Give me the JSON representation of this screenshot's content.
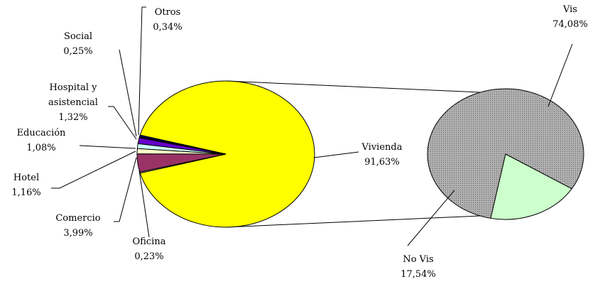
{
  "chart_data": {
    "type": "pie_of_pie",
    "categories": [
      "Vivienda",
      "Otros",
      "Social",
      "Hospital y asistencial",
      "Educación",
      "Hotel",
      "Comercio",
      "Oficina"
    ],
    "values": [
      91.63,
      0.34,
      0.25,
      1.32,
      1.08,
      1.16,
      3.99,
      0.23
    ],
    "value_labels": [
      "91,63%",
      "0,34%",
      "0,25%",
      "1,32%",
      "1,08%",
      "1,16%",
      "3,99%",
      "0,23%"
    ],
    "colors": [
      "#ffff00",
      "#000080",
      "#000000",
      "#6600cc",
      "#ccffff",
      "#ffffcc",
      "#993366",
      "#ffffff"
    ],
    "secondary": {
      "categories": [
        "Vis",
        "No Vis"
      ],
      "values": [
        74.08,
        17.54
      ],
      "value_labels": [
        "74,08%",
        "17,54%"
      ],
      "colors": [
        "url(#dots)",
        "#ccffcc"
      ]
    }
  }
}
